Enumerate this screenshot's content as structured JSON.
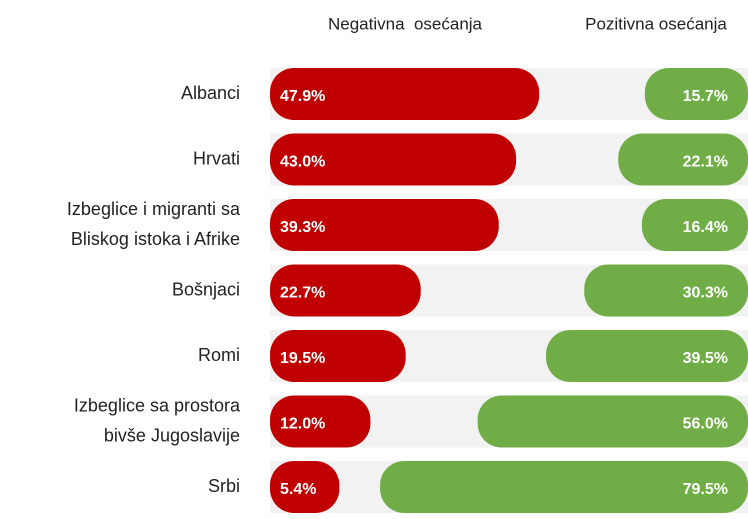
{
  "chart_data": {
    "type": "diverging-bar",
    "categories": [
      [
        "Albanci"
      ],
      [
        "Hrvati"
      ],
      [
        "Izbeglice i migranti sa",
        "Bliskog istoka i Afrike"
      ],
      [
        "Bošnjaci"
      ],
      [
        "Romi"
      ],
      [
        "Izbeglice sa prostora",
        "bivše Jugoslavije"
      ],
      [
        "Srbi"
      ]
    ],
    "series": [
      {
        "name": "Negativna  osećanja",
        "color": "#c00000",
        "values": [
          47.9,
          43.0,
          39.3,
          22.7,
          19.5,
          12.0,
          5.4
        ],
        "value_labels": [
          "47.9%",
          "43.0%",
          "39.3%",
          "22.7%",
          "19.5%",
          "12.0%",
          "5.4%"
        ]
      },
      {
        "name": "Pozitivna osećanja",
        "color": "#70ad47",
        "values": [
          15.7,
          22.1,
          16.4,
          30.3,
          39.5,
          56.0,
          79.5
        ],
        "value_labels": [
          "15.7%",
          "22.1%",
          "16.4%",
          "30.3%",
          "39.5%",
          "56.0%",
          "79.5%"
        ]
      }
    ]
  }
}
